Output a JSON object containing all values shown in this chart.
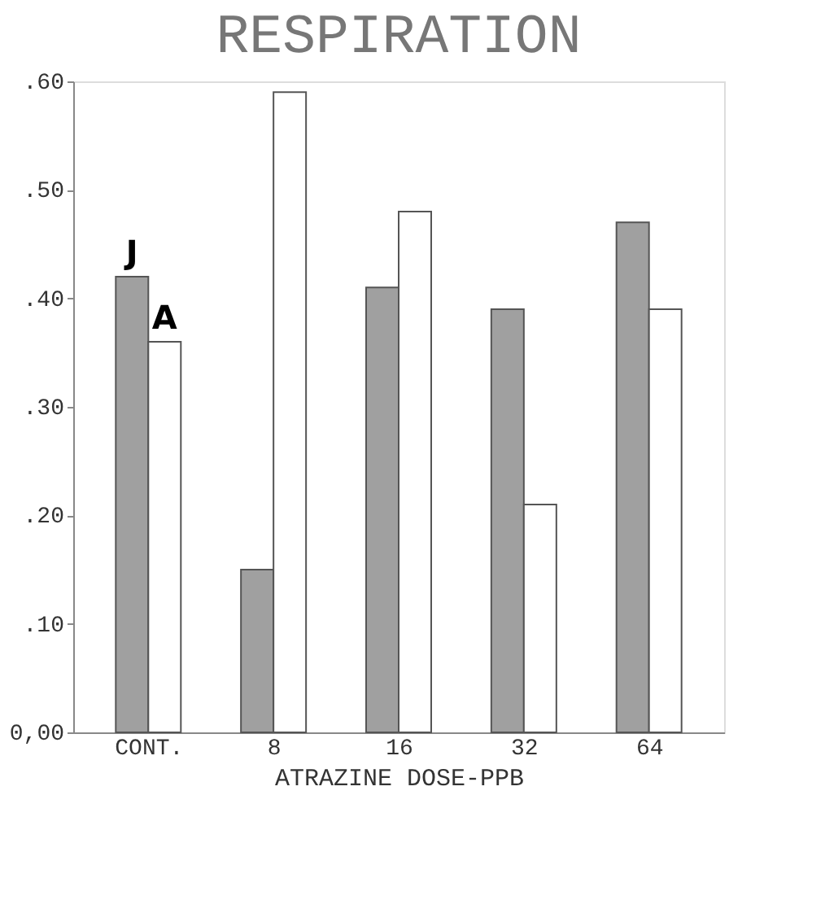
{
  "chart_data": {
    "type": "bar",
    "title": "RESPIRATION",
    "xlabel": "ATRAZINE DOSE-PPB",
    "categories": [
      "CONT.",
      "8",
      "16",
      "32",
      "64"
    ],
    "series": [
      {
        "name": "J",
        "color": "#a0a0a0",
        "values": [
          0.42,
          0.15,
          0.41,
          0.39,
          0.47
        ]
      },
      {
        "name": "A",
        "color": "#ffffff",
        "values": [
          0.36,
          0.59,
          0.48,
          0.21,
          0.39
        ]
      }
    ],
    "ylim": [
      0,
      0.6
    ],
    "yticks": [
      {
        "value": 0,
        "label": "0,00"
      },
      {
        "value": 0.1,
        "label": ".10"
      },
      {
        "value": 0.2,
        "label": ".20"
      },
      {
        "value": 0.3,
        "label": ".30"
      },
      {
        "value": 0.4,
        "label": ".40"
      },
      {
        "value": 0.5,
        "label": ".50"
      },
      {
        "value": 0.6,
        "label": ".60"
      }
    ],
    "grid": false,
    "legend": false
  }
}
